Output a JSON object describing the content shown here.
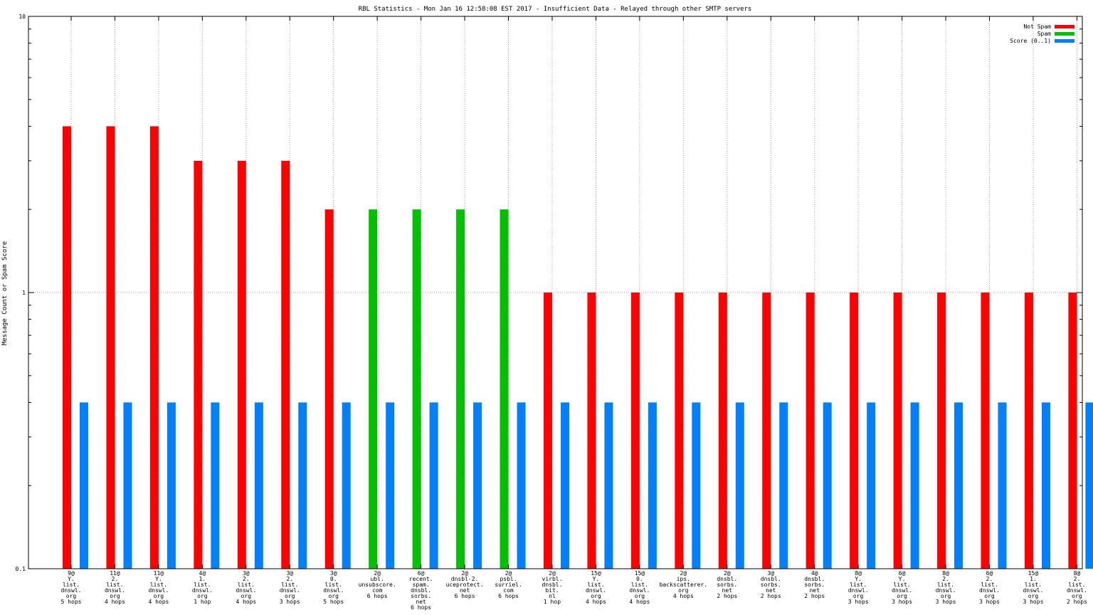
{
  "chart_data": {
    "type": "bar",
    "title": "RBL Statistics - Mon Jan 16 12:58:08 EST 2017 - Insufficient Data - Relayed through other SMTP servers",
    "ylabel": "Message Count or Spam Score",
    "xlabel": "",
    "yscale": "log",
    "ylim": [
      0.1,
      10
    ],
    "yticks": [
      "10",
      "1",
      "0.1"
    ],
    "grid": true,
    "legend_position": "top-right",
    "categories": [
      [
        "9@",
        "Y.",
        "list.",
        "dnswl.",
        "org",
        "5 hops"
      ],
      [
        "11@",
        "2.",
        "list.",
        "dnswl.",
        "org",
        "4 hops"
      ],
      [
        "11@",
        "Y.",
        "list.",
        "dnswl.",
        "org",
        "4 hops"
      ],
      [
        "4@",
        "1.",
        "list.",
        "dnswl.",
        "org",
        "1 hop"
      ],
      [
        "3@",
        "2.",
        "list.",
        "dnswl.",
        "org",
        "4 hops"
      ],
      [
        "3@",
        "2.",
        "list.",
        "dnswl.",
        "org",
        "3 hops"
      ],
      [
        "3@",
        "0.",
        "list.",
        "dnswl.",
        "org",
        "5 hops"
      ],
      [
        "2@",
        "ubl.",
        "unsubscore.",
        "com",
        "6 hops"
      ],
      [
        "6@",
        "recent.",
        "spam.",
        "dnsbl.",
        "sorbs.",
        "net",
        "6 hops"
      ],
      [
        "2@",
        "dnsbl-2.",
        "uceprotect.",
        "net",
        "6 hops"
      ],
      [
        "2@",
        "psbl.",
        "surriel.",
        "com",
        "6 hops"
      ],
      [
        "2@",
        "virbl.",
        "dnsbl.",
        "bit.",
        "nl",
        "1 hop"
      ],
      [
        "15@",
        "Y.",
        "list.",
        "dnswl.",
        "org",
        "4 hops"
      ],
      [
        "15@",
        "0.",
        "list.",
        "dnswl.",
        "org",
        "4 hops"
      ],
      [
        "2@",
        "ips.",
        "backscatterer.",
        "org",
        "4 hops"
      ],
      [
        "2@",
        "dnsbl.",
        "sorbs.",
        "net",
        "2 hops"
      ],
      [
        "3@",
        "dnsbl.",
        "sorbs.",
        "net",
        "2 hops"
      ],
      [
        "4@",
        "dnsbl.",
        "sorbs.",
        "net",
        "2 hops"
      ],
      [
        "8@",
        "Y.",
        "list.",
        "dnswl.",
        "org",
        "3 hops"
      ],
      [
        "6@",
        "Y.",
        "list.",
        "dnswl.",
        "org",
        "3 hops"
      ],
      [
        "8@",
        "2.",
        "list.",
        "dnswl.",
        "org",
        "3 hops"
      ],
      [
        "6@",
        "2.",
        "list.",
        "dnswl.",
        "org",
        "3 hops"
      ],
      [
        "15@",
        "1.",
        "list.",
        "dnswl.",
        "org",
        "3 hops"
      ],
      [
        "8@",
        "2.",
        "list.",
        "dnswl.",
        "org",
        "2 hops"
      ]
    ],
    "series": [
      {
        "name": "Not Spam",
        "color": "#ff0000",
        "values": [
          4,
          4,
          4,
          3,
          3,
          3,
          2,
          0,
          0,
          0,
          0,
          1,
          1,
          1,
          1,
          1,
          1,
          1,
          1,
          1,
          1,
          1,
          1,
          1
        ]
      },
      {
        "name": "Spam",
        "color": "#00c000",
        "values": [
          0,
          0,
          0,
          0,
          0,
          0,
          0,
          2,
          2,
          2,
          2,
          0,
          0,
          0,
          0,
          0,
          0,
          0,
          0,
          0,
          0,
          0,
          0,
          0
        ]
      },
      {
        "name": "Score (0..1)",
        "color": "#0080ff",
        "values": [
          0.4,
          0.4,
          0.4,
          0.4,
          0.4,
          0.4,
          0.4,
          0.4,
          0.4,
          0.4,
          0.4,
          0.4,
          0.4,
          0.4,
          0.4,
          0.4,
          0.4,
          0.4,
          0.4,
          0.4,
          0.4,
          0.4,
          0.4,
          0.4
        ]
      }
    ]
  }
}
